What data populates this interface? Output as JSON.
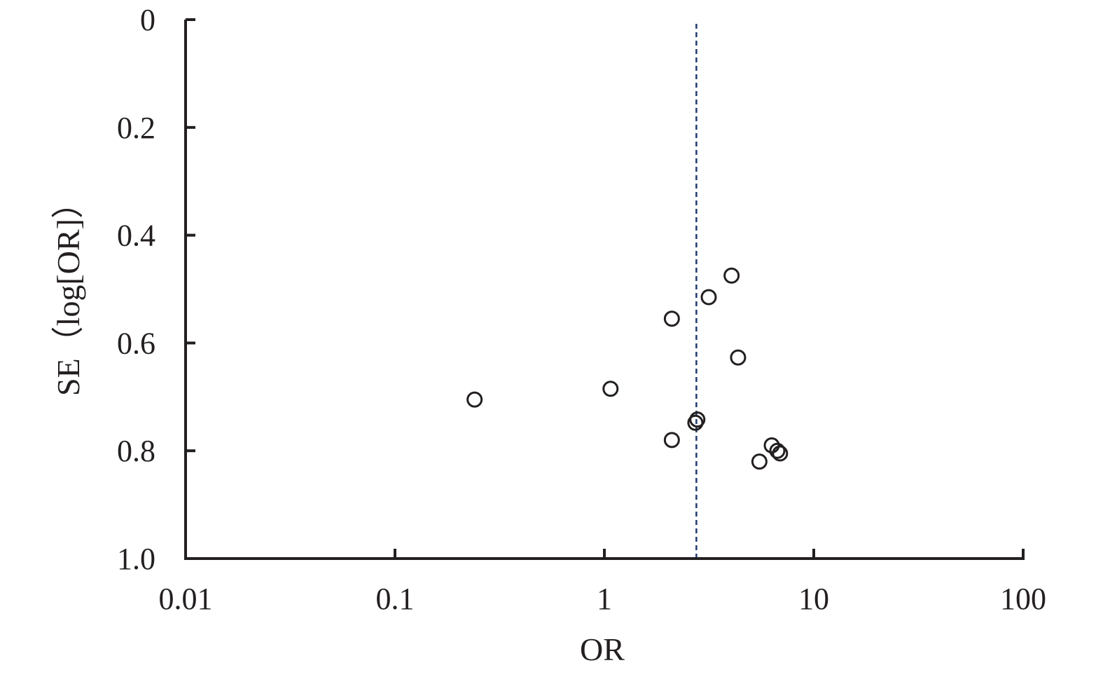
{
  "chart_data": {
    "type": "scatter",
    "title": "",
    "xlabel": "OR",
    "ylabel": "SE（log[OR]）",
    "x_scale": "log",
    "xlim": [
      0.01,
      100
    ],
    "ylim": [
      0,
      1.0
    ],
    "y_inverted": true,
    "x_ticks": [
      "0.01",
      "0.1",
      "1",
      "10",
      "100"
    ],
    "y_ticks": [
      "0",
      "0.2",
      "0.4",
      "0.6",
      "0.8",
      "1.0"
    ],
    "reference_line_x": 2.75,
    "grid": false,
    "points": [
      {
        "x": 0.24,
        "y": 0.705
      },
      {
        "x": 1.07,
        "y": 0.685
      },
      {
        "x": 2.1,
        "y": 0.555
      },
      {
        "x": 2.1,
        "y": 0.78
      },
      {
        "x": 2.72,
        "y": 0.748
      },
      {
        "x": 2.78,
        "y": 0.742
      },
      {
        "x": 3.15,
        "y": 0.515
      },
      {
        "x": 4.05,
        "y": 0.475
      },
      {
        "x": 4.35,
        "y": 0.627
      },
      {
        "x": 5.5,
        "y": 0.82
      },
      {
        "x": 6.3,
        "y": 0.79
      },
      {
        "x": 6.7,
        "y": 0.8
      },
      {
        "x": 6.9,
        "y": 0.805
      }
    ],
    "colors": {
      "axis": "#231f20",
      "reference_line": "#1f3a6e",
      "marker": "#231f20"
    }
  }
}
